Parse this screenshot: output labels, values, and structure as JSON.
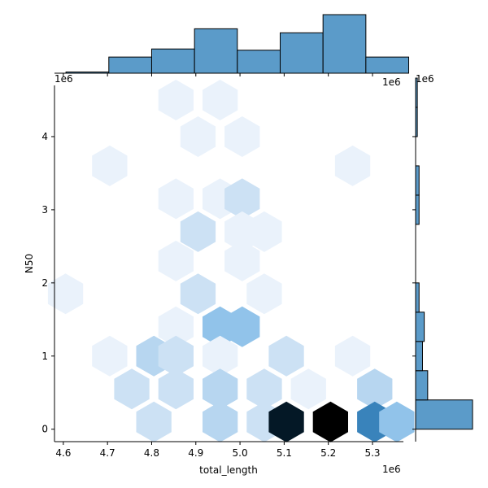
{
  "chart_data": {
    "type": "heatmap",
    "subtype": "jointplot-hexbin",
    "xlabel": "total_length",
    "ylabel": "N50",
    "x_offset_label": "1e6",
    "y_offset_label": "1e6",
    "xlim": [
      4.58,
      5.37
    ],
    "ylim": [
      -0.17,
      4.7
    ],
    "x_ticks": [
      4.6,
      4.7,
      4.8,
      4.9,
      5.0,
      5.1,
      5.2,
      5.3
    ],
    "x_tick_labels": [
      "4.6",
      "4.7",
      "4.8",
      "4.9",
      "5.0",
      "5.1",
      "5.2",
      "5.3"
    ],
    "y_ticks": [
      0,
      1,
      2,
      3,
      4
    ],
    "y_tick_labels": [
      "0",
      "1",
      "2",
      "3",
      "4"
    ],
    "color_low": "#eaf2fb",
    "color_high": "#000000",
    "bar_color": "#5b9bc9",
    "hexbins": [
      {
        "x": 4.855,
        "y": 4.5,
        "count": 1
      },
      {
        "x": 4.955,
        "y": 4.5,
        "count": 1
      },
      {
        "x": 4.905,
        "y": 4.0,
        "count": 1
      },
      {
        "x": 5.005,
        "y": 4.0,
        "count": 1
      },
      {
        "x": 4.705,
        "y": 3.6,
        "count": 1
      },
      {
        "x": 5.255,
        "y": 3.6,
        "count": 1
      },
      {
        "x": 4.855,
        "y": 3.15,
        "count": 1
      },
      {
        "x": 4.955,
        "y": 3.15,
        "count": 1
      },
      {
        "x": 5.005,
        "y": 3.15,
        "count": 2
      },
      {
        "x": 4.905,
        "y": 2.7,
        "count": 2
      },
      {
        "x": 5.005,
        "y": 2.7,
        "count": 1
      },
      {
        "x": 5.055,
        "y": 2.7,
        "count": 1
      },
      {
        "x": 4.855,
        "y": 2.3,
        "count": 1
      },
      {
        "x": 5.005,
        "y": 2.3,
        "count": 1
      },
      {
        "x": 4.605,
        "y": 1.85,
        "count": 1
      },
      {
        "x": 4.905,
        "y": 1.85,
        "count": 2
      },
      {
        "x": 5.055,
        "y": 1.85,
        "count": 1
      },
      {
        "x": 4.855,
        "y": 1.4,
        "count": 1
      },
      {
        "x": 4.955,
        "y": 1.4,
        "count": 4
      },
      {
        "x": 5.005,
        "y": 1.4,
        "count": 4
      },
      {
        "x": 4.705,
        "y": 1.0,
        "count": 1
      },
      {
        "x": 4.805,
        "y": 1.0,
        "count": 3
      },
      {
        "x": 4.855,
        "y": 1.0,
        "count": 2
      },
      {
        "x": 4.955,
        "y": 1.0,
        "count": 1
      },
      {
        "x": 5.105,
        "y": 1.0,
        "count": 2
      },
      {
        "x": 5.255,
        "y": 1.0,
        "count": 1
      },
      {
        "x": 4.755,
        "y": 0.55,
        "count": 2
      },
      {
        "x": 4.855,
        "y": 0.55,
        "count": 2
      },
      {
        "x": 4.955,
        "y": 0.55,
        "count": 3
      },
      {
        "x": 5.055,
        "y": 0.55,
        "count": 2
      },
      {
        "x": 5.155,
        "y": 0.55,
        "count": 1
      },
      {
        "x": 5.305,
        "y": 0.55,
        "count": 3
      },
      {
        "x": 4.805,
        "y": 0.1,
        "count": 2
      },
      {
        "x": 4.955,
        "y": 0.1,
        "count": 3
      },
      {
        "x": 5.055,
        "y": 0.1,
        "count": 2
      },
      {
        "x": 5.105,
        "y": 0.1,
        "count": 13
      },
      {
        "x": 5.205,
        "y": 0.1,
        "count": 15
      },
      {
        "x": 5.305,
        "y": 0.1,
        "count": 7
      },
      {
        "x": 5.355,
        "y": 0.1,
        "count": 4
      }
    ],
    "x_hist": {
      "bin_edges": [
        4.606,
        4.703,
        4.8,
        4.897,
        4.994,
        5.091,
        5.188,
        5.285
      ],
      "counts": [
        0.3,
        4,
        6,
        11,
        5.7,
        10,
        14.5,
        4
      ]
    },
    "y_hist": {
      "bin_edges": [
        0.0,
        0.4,
        0.8,
        1.2,
        1.6,
        2.0,
        2.4,
        2.8,
        3.2,
        3.6,
        4.0,
        4.4
      ],
      "counts": [
        33,
        7,
        4,
        5,
        2,
        0,
        0,
        2,
        2,
        0,
        1,
        1
      ]
    }
  }
}
